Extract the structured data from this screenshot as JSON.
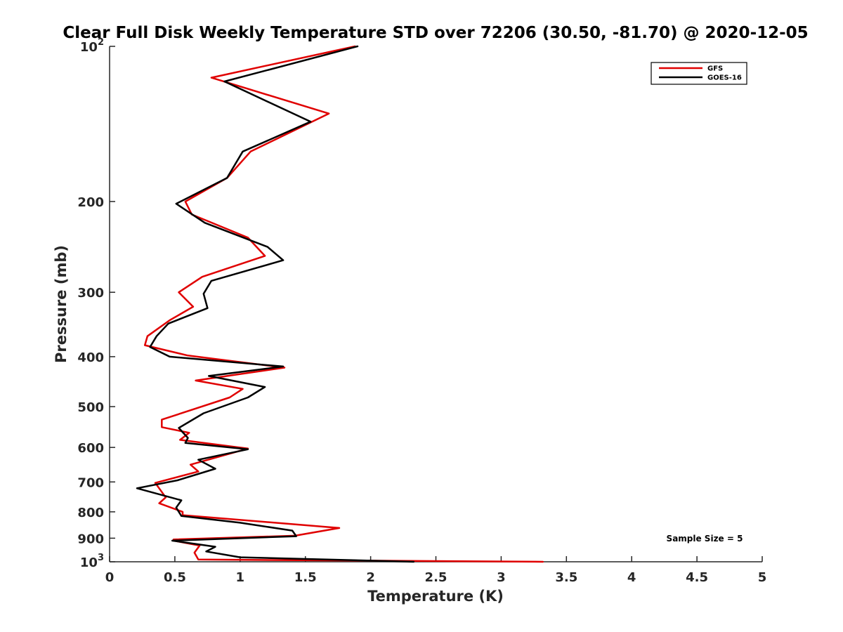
{
  "chart_data": {
    "type": "line",
    "title": "Clear Full Disk Weekly Temperature STD over 72206 (30.50, -81.70) @ 2020-12-05",
    "xlabel": "Temperature (K)",
    "ylabel": "Pressure (mb)",
    "xlim": [
      0,
      5
    ],
    "ylim": [
      100,
      1000
    ],
    "y_scale": "log",
    "y_reversed": true,
    "x_ticks": [
      "0",
      "0.5",
      "1",
      "1.5",
      "2",
      "2.5",
      "3",
      "3.5",
      "4",
      "4.5",
      "5"
    ],
    "x_tick_values": [
      0,
      0.5,
      1,
      1.5,
      2,
      2.5,
      3,
      3.5,
      4,
      4.5,
      5
    ],
    "y_ticks": [
      {
        "value": 100,
        "base": "10",
        "exp": "2"
      },
      {
        "value": 200,
        "label": "200"
      },
      {
        "value": 300,
        "label": "300"
      },
      {
        "value": 400,
        "label": "400"
      },
      {
        "value": 500,
        "label": "500"
      },
      {
        "value": 600,
        "label": "600"
      },
      {
        "value": 700,
        "label": "700"
      },
      {
        "value": 800,
        "label": "800"
      },
      {
        "value": 900,
        "label": "900"
      },
      {
        "value": 1000,
        "base": "10",
        "exp": "3"
      }
    ],
    "legend_position": "top-right",
    "grid": false,
    "annotation": "Sample Size = 5",
    "series": [
      {
        "name": "GFS",
        "color": "#e00000",
        "points": [
          [
            1.88,
            100
          ],
          [
            0.78,
            115
          ],
          [
            1.68,
            135
          ],
          [
            1.08,
            160
          ],
          [
            0.9,
            180
          ],
          [
            0.58,
            200
          ],
          [
            0.63,
            212
          ],
          [
            1.06,
            235
          ],
          [
            1.19,
            255
          ],
          [
            0.71,
            280
          ],
          [
            0.53,
            300
          ],
          [
            0.64,
            320
          ],
          [
            0.46,
            340
          ],
          [
            0.29,
            365
          ],
          [
            0.27,
            380
          ],
          [
            0.6,
            398
          ],
          [
            1.34,
            420
          ],
          [
            0.66,
            445
          ],
          [
            1.02,
            462
          ],
          [
            0.92,
            480
          ],
          [
            0.4,
            530
          ],
          [
            0.4,
            548
          ],
          [
            0.61,
            562
          ],
          [
            0.54,
            580
          ],
          [
            1.06,
            603
          ],
          [
            0.62,
            648
          ],
          [
            0.68,
            668
          ],
          [
            0.35,
            703
          ],
          [
            0.43,
            750
          ],
          [
            0.38,
            770
          ],
          [
            0.56,
            800
          ],
          [
            0.56,
            812
          ],
          [
            1.76,
            860
          ],
          [
            1.42,
            890
          ],
          [
            0.49,
            905
          ],
          [
            0.51,
            912
          ],
          [
            0.69,
            930
          ],
          [
            0.65,
            960
          ],
          [
            0.68,
            990
          ],
          [
            3.32,
            1000
          ]
        ]
      },
      {
        "name": "GOES-16",
        "color": "#000000",
        "points": [
          [
            1.9,
            100
          ],
          [
            0.88,
            117
          ],
          [
            1.54,
            140
          ],
          [
            1.02,
            160
          ],
          [
            0.9,
            180
          ],
          [
            0.51,
            202
          ],
          [
            0.73,
            220
          ],
          [
            1.21,
            245
          ],
          [
            1.33,
            260
          ],
          [
            0.78,
            285
          ],
          [
            0.72,
            302
          ],
          [
            0.75,
            322
          ],
          [
            0.45,
            345
          ],
          [
            0.36,
            365
          ],
          [
            0.31,
            383
          ],
          [
            0.46,
            400
          ],
          [
            1.33,
            418
          ],
          [
            0.76,
            436
          ],
          [
            1.19,
            458
          ],
          [
            1.06,
            480
          ],
          [
            0.72,
            515
          ],
          [
            0.53,
            550
          ],
          [
            0.6,
            575
          ],
          [
            0.58,
            588
          ],
          [
            1.06,
            605
          ],
          [
            0.68,
            634
          ],
          [
            0.81,
            660
          ],
          [
            0.52,
            695
          ],
          [
            0.21,
            720
          ],
          [
            0.55,
            760
          ],
          [
            0.51,
            785
          ],
          [
            0.55,
            815
          ],
          [
            1.0,
            840
          ],
          [
            1.4,
            870
          ],
          [
            1.43,
            892
          ],
          [
            0.48,
            910
          ],
          [
            0.81,
            935
          ],
          [
            0.74,
            955
          ],
          [
            1.0,
            980
          ],
          [
            2.33,
            1000
          ]
        ]
      }
    ]
  }
}
